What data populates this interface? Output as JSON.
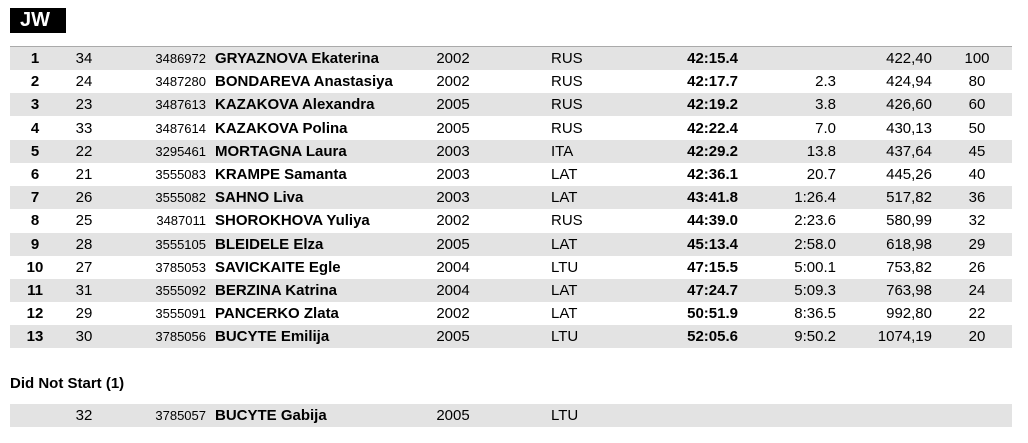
{
  "header": {
    "title": "JW"
  },
  "table": {
    "rows": [
      {
        "rank": "1",
        "bib": "34",
        "code": "3486972",
        "name": "GRYAZNOVA Ekaterina",
        "year": "2002",
        "nation": "RUS",
        "time": "42:15.4",
        "points": "422,40",
        "score": "100"
      },
      {
        "rank": "2",
        "bib": "24",
        "code": "3487280",
        "name": "BONDAREVA Anastasiya",
        "year": "2002",
        "nation": "RUS",
        "time": "42:17.7",
        "gap": "2.3",
        "points": "424,94",
        "score": "80"
      },
      {
        "rank": "3",
        "bib": "23",
        "code": "3487613",
        "name": "KAZAKOVA Alexandra",
        "year": "2005",
        "nation": "RUS",
        "time": "42:19.2",
        "gap": "3.8",
        "points": "426,60",
        "score": "60"
      },
      {
        "rank": "4",
        "bib": "33",
        "code": "3487614",
        "name": "KAZAKOVA Polina",
        "year": "2005",
        "nation": "RUS",
        "time": "42:22.4",
        "gap": "7.0",
        "points": "430,13",
        "score": "50"
      },
      {
        "rank": "5",
        "bib": "22",
        "code": "3295461",
        "name": "MORTAGNA Laura",
        "year": "2003",
        "nation": "ITA",
        "time": "42:29.2",
        "gap": "13.8",
        "points": "437,64",
        "score": "45"
      },
      {
        "rank": "6",
        "bib": "21",
        "code": "3555083",
        "name": "KRAMPE Samanta",
        "year": "2003",
        "nation": "LAT",
        "time": "42:36.1",
        "gap": "20.7",
        "points": "445,26",
        "score": "40"
      },
      {
        "rank": "7",
        "bib": "26",
        "code": "3555082",
        "name": "SAHNO Liva",
        "year": "2003",
        "nation": "LAT",
        "time": "43:41.8",
        "gap": "1:26.4",
        "points": "517,82",
        "score": "36"
      },
      {
        "rank": "8",
        "bib": "25",
        "code": "3487011",
        "name": "SHOROKHOVA Yuliya",
        "year": "2002",
        "nation": "RUS",
        "time": "44:39.0",
        "gap": "2:23.6",
        "points": "580,99",
        "score": "32"
      },
      {
        "rank": "9",
        "bib": "28",
        "code": "3555105",
        "name": "BLEIDELE Elza",
        "year": "2005",
        "nation": "LAT",
        "time": "45:13.4",
        "gap": "2:58.0",
        "points": "618,98",
        "score": "29"
      },
      {
        "rank": "10",
        "bib": "27",
        "code": "3785053",
        "name": "SAVICKAITE Egle",
        "year": "2004",
        "nation": "LTU",
        "time": "47:15.5",
        "gap": "5:00.1",
        "points": "753,82",
        "score": "26"
      },
      {
        "rank": "11",
        "bib": "31",
        "code": "3555092",
        "name": "BERZINA Katrina",
        "year": "2004",
        "nation": "LAT",
        "time": "47:24.7",
        "gap": "5:09.3",
        "points": "763,98",
        "score": "24"
      },
      {
        "rank": "12",
        "bib": "29",
        "code": "3555091",
        "name": "PANCERKO Zlata",
        "year": "2002",
        "nation": "LAT",
        "time": "50:51.9",
        "gap": "8:36.5",
        "points": "992,80",
        "score": "22"
      },
      {
        "rank": "13",
        "bib": "30",
        "code": "3785056",
        "name": "BUCYTE Emilija",
        "year": "2005",
        "nation": "LTU",
        "time": "52:05.6",
        "gap": "9:50.2",
        "points": "1074,19",
        "score": "20"
      }
    ]
  },
  "dns": {
    "title": "Did Not Start (1)",
    "rows": [
      {
        "bib": "32",
        "code": "3785057",
        "name": "BUCYTE Gabija",
        "year": "2005",
        "nation": "LTU"
      }
    ]
  }
}
